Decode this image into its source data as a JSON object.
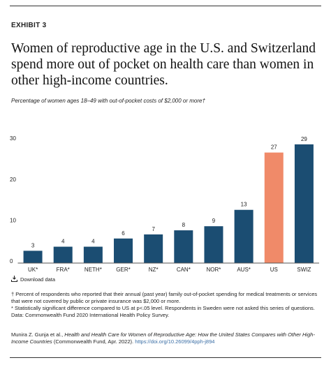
{
  "exhibit": "EXHIBIT 3",
  "chart_data": {
    "type": "bar",
    "title": "Women of reproductive age in the U.S. and Switzerland spend more out of pocket on health care than women in other high-income countries.",
    "subtitle": "Percentage of women ages 18–49 with out-of-pocket costs of $2,000 or more†",
    "categories": [
      "UK*",
      "FRA*",
      "NETH*",
      "GER*",
      "NZ*",
      "CAN*",
      "NOR*",
      "AUS*",
      "US",
      "SWIZ"
    ],
    "values": [
      3,
      4,
      4,
      6,
      7,
      8,
      9,
      13,
      27,
      29
    ],
    "colors": [
      "#1b4d72",
      "#1b4d72",
      "#1b4d72",
      "#1b4d72",
      "#1b4d72",
      "#1b4d72",
      "#1b4d72",
      "#1b4d72",
      "#f08a69",
      "#1b4d72"
    ],
    "ylim": [
      0,
      30
    ],
    "yticks": [
      0,
      10,
      20,
      30
    ],
    "grid": false
  },
  "download": "Download data",
  "notes": [
    "† Percent of respondents who reported that their annual (past year) family out-of-pocket spending for medical treatments or services that were not covered by public or private insurance was $2,000 or more.",
    "* Statistically significant difference compared to US at p<.05 level. Respondents in Sweden were not asked this series of questions.",
    "Data: Commonwealth Fund 2020 International Health Policy Survey."
  ],
  "citation": {
    "authors": "Munira Z. Gunja et al., ",
    "title": "Health and Health Care for Women of Reproductive Age: How the United States Compares with Other High-Income Countries",
    "publisher": " (Commonwealth Fund, Apr. 2022). ",
    "url": "https://doi.org/10.26099/4pph-j894"
  }
}
